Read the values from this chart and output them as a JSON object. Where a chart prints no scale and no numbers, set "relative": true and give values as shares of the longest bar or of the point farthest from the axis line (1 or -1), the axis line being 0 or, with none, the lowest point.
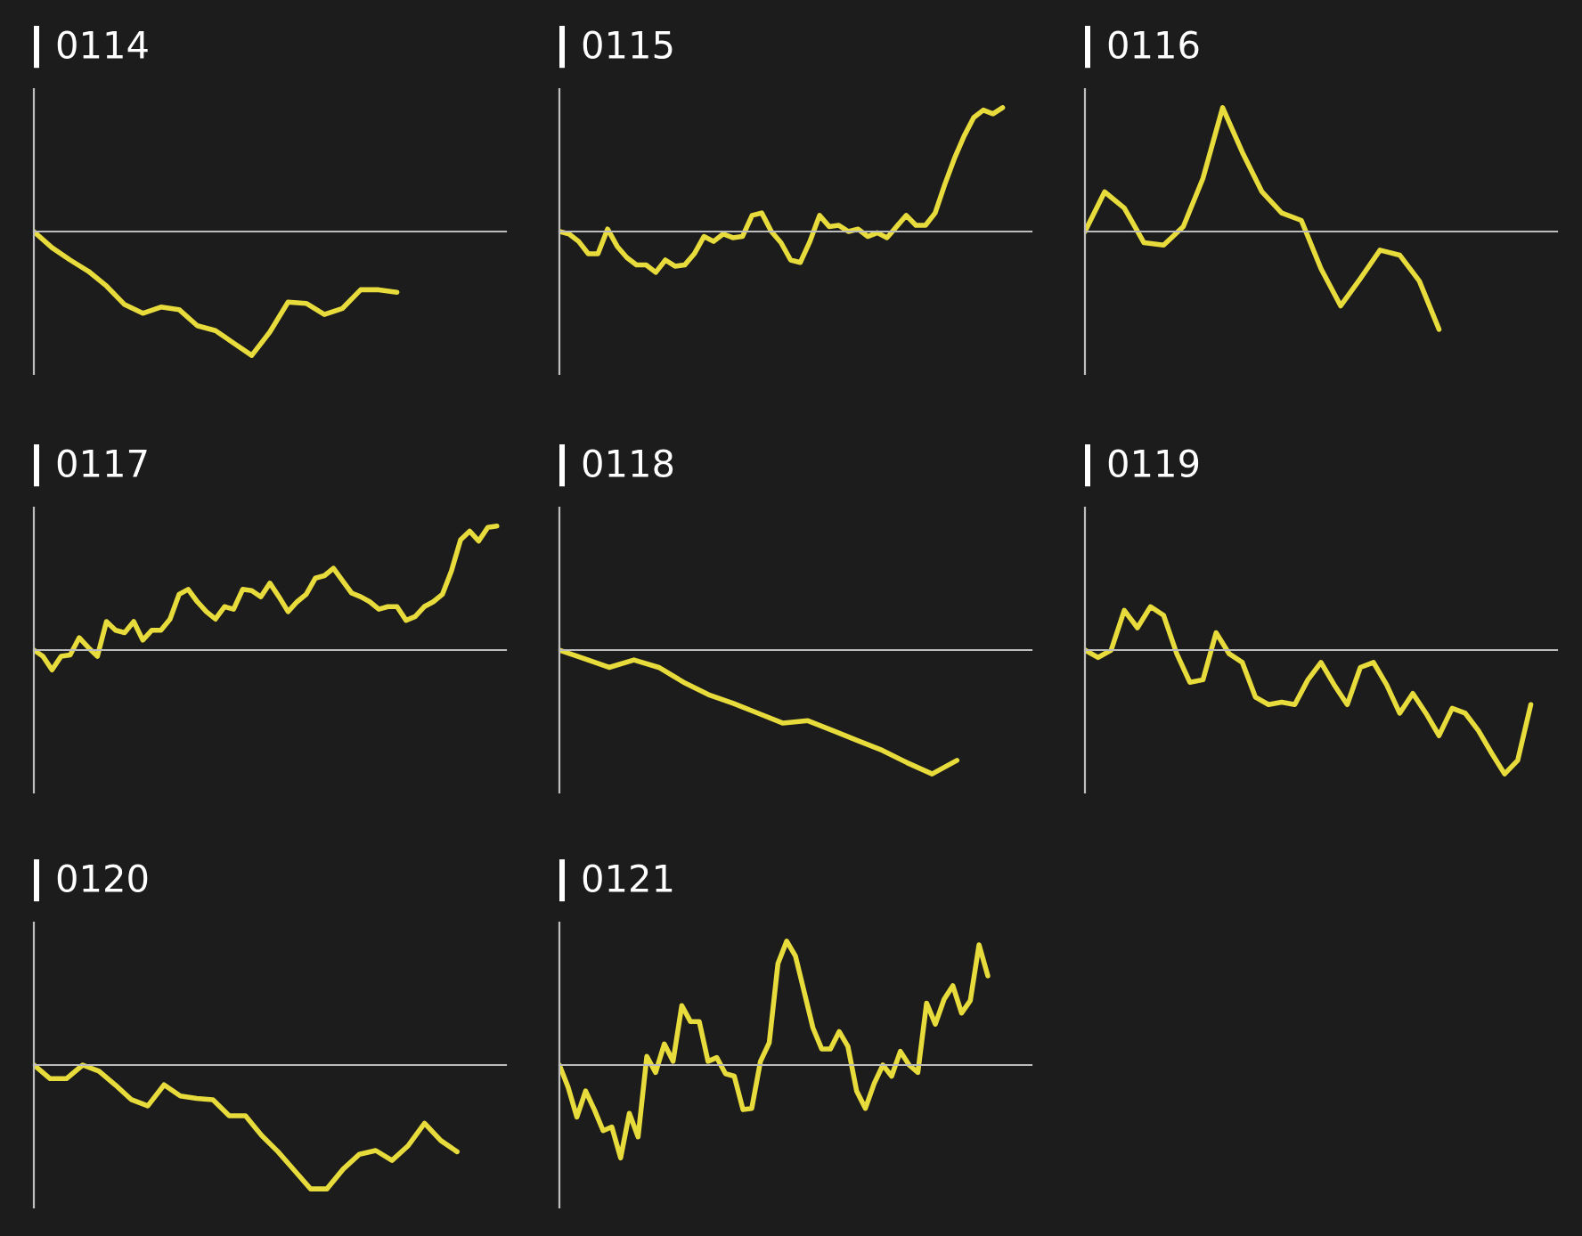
{
  "chart_data": [
    {
      "type": "line",
      "title": "0114",
      "relative": true,
      "categories": [
        null,
        null,
        null,
        null,
        null,
        null,
        null,
        null,
        null,
        null,
        null,
        null,
        null,
        null,
        null,
        null,
        null,
        null,
        null,
        null,
        null,
        null,
        null,
        null,
        null,
        null,
        null
      ],
      "series": [
        {
          "color": "#e8dc3c",
          "values": [
            0,
            -0.13,
            -0.23,
            -0.32,
            -0.44,
            -0.59,
            -0.66,
            -0.61,
            -0.63,
            -0.76,
            -0.8,
            -0.9,
            -1,
            -0.81,
            -0.57,
            -0.58,
            -0.67,
            -0.62,
            -0.47,
            -0.47,
            -0.49,
            null,
            null,
            null,
            null,
            null,
            null
          ]
        }
      ]
    },
    {
      "type": "line",
      "title": "0115",
      "relative": true,
      "categories": [
        null,
        null,
        null,
        null,
        null,
        null,
        null,
        null,
        null,
        null,
        null,
        null,
        null,
        null,
        null,
        null,
        null,
        null,
        null,
        null,
        null,
        null,
        null,
        null,
        null,
        null,
        null,
        null,
        null,
        null,
        null,
        null,
        null,
        null,
        null,
        null,
        null,
        null,
        null,
        null,
        null,
        null,
        null,
        null,
        null,
        null,
        null,
        null,
        null,
        null
      ],
      "series": [
        {
          "color": "#e8dc3c",
          "values": [
            0,
            -0.02,
            -0.08,
            -0.18,
            -0.18,
            0.02,
            -0.12,
            -0.21,
            -0.27,
            -0.27,
            -0.33,
            -0.23,
            -0.28,
            -0.27,
            -0.18,
            -0.04,
            -0.08,
            -0.02,
            -0.05,
            -0.04,
            0.13,
            0.15,
            0,
            -0.09,
            -0.23,
            -0.25,
            -0.08,
            0.13,
            0.04,
            0.05,
            0,
            0.02,
            -0.04,
            -0.01,
            -0.05,
            0.04,
            0.13,
            0.05,
            0.05,
            0.15,
            0.38,
            0.59,
            0.77,
            0.92,
            0.98,
            0.95,
            1,
            null,
            null,
            null
          ]
        }
      ]
    },
    {
      "type": "line",
      "title": "0116",
      "relative": true,
      "categories": [
        null,
        null,
        null,
        null,
        null,
        null,
        null,
        null,
        null,
        null,
        null,
        null,
        null,
        null,
        null,
        null,
        null,
        null,
        null,
        null,
        null,
        null,
        null,
        null,
        null
      ],
      "series": [
        {
          "color": "#e8dc3c",
          "values": [
            0,
            0.32,
            0.19,
            -0.09,
            -0.11,
            0.04,
            0.43,
            1,
            0.64,
            0.32,
            0.15,
            0.09,
            -0.3,
            -0.6,
            -0.38,
            -0.15,
            -0.19,
            -0.4,
            -0.79,
            null,
            null,
            null,
            null,
            null,
            null
          ]
        }
      ]
    },
    {
      "type": "line",
      "title": "0117",
      "relative": true,
      "categories": [
        null,
        null,
        null,
        null,
        null,
        null,
        null,
        null,
        null,
        null,
        null,
        null,
        null,
        null,
        null,
        null,
        null,
        null,
        null,
        null,
        null,
        null,
        null,
        null,
        null,
        null,
        null,
        null,
        null,
        null,
        null,
        null,
        null,
        null,
        null,
        null,
        null,
        null,
        null,
        null,
        null,
        null,
        null,
        null,
        null,
        null,
        null,
        null,
        null,
        null,
        null,
        null,
        null
      ],
      "series": [
        {
          "color": "#e8dc3c",
          "values": [
            0,
            -0.05,
            -0.16,
            -0.05,
            -0.04,
            0.1,
            0.02,
            -0.05,
            0.23,
            0.16,
            0.14,
            0.23,
            0.08,
            0.16,
            0.16,
            0.25,
            0.45,
            0.49,
            0.39,
            0.31,
            0.25,
            0.35,
            0.33,
            0.49,
            0.48,
            0.43,
            0.54,
            0.43,
            0.31,
            0.39,
            0.45,
            0.58,
            0.6,
            0.66,
            0.56,
            0.46,
            0.43,
            0.39,
            0.33,
            0.35,
            0.35,
            0.24,
            0.27,
            0.35,
            0.39,
            0.45,
            0.64,
            0.89,
            0.96,
            0.88,
            0.99,
            1,
            null
          ]
        }
      ]
    },
    {
      "type": "line",
      "title": "0118",
      "relative": true,
      "categories": [
        null,
        null,
        null,
        null,
        null,
        null,
        null,
        null,
        null,
        null,
        null,
        null,
        null,
        null,
        null,
        null,
        null,
        null,
        null,
        null
      ],
      "series": [
        {
          "color": "#e8dc3c",
          "values": [
            0,
            -0.07,
            -0.14,
            -0.08,
            -0.14,
            -0.26,
            -0.36,
            -0.43,
            -0.51,
            -0.59,
            -0.57,
            -0.65,
            -0.73,
            -0.81,
            -0.91,
            -1,
            -0.89,
            null,
            null,
            null
          ]
        }
      ]
    },
    {
      "type": "line",
      "title": "0119",
      "relative": true,
      "categories": [
        null,
        null,
        null,
        null,
        null,
        null,
        null,
        null,
        null,
        null,
        null,
        null,
        null,
        null,
        null,
        null,
        null,
        null,
        null,
        null,
        null,
        null,
        null,
        null,
        null,
        null,
        null,
        null,
        null,
        null,
        null,
        null,
        null,
        null,
        null,
        null,
        null
      ],
      "series": [
        {
          "color": "#e8dc3c",
          "values": [
            0,
            -0.06,
            0,
            0.32,
            0.18,
            0.35,
            0.28,
            -0.03,
            -0.26,
            -0.24,
            0.14,
            -0.03,
            -0.1,
            -0.38,
            -0.44,
            -0.42,
            -0.44,
            -0.24,
            -0.1,
            -0.28,
            -0.44,
            -0.14,
            -0.1,
            -0.28,
            -0.51,
            -0.35,
            -0.51,
            -0.69,
            -0.47,
            -0.51,
            -0.65,
            -0.83,
            -1,
            -0.89,
            -0.44,
            null,
            null
          ]
        }
      ]
    },
    {
      "type": "line",
      "title": "0120",
      "relative": true,
      "categories": [
        null,
        null,
        null,
        null,
        null,
        null,
        null,
        null,
        null,
        null,
        null,
        null,
        null,
        null,
        null,
        null,
        null,
        null,
        null,
        null,
        null,
        null,
        null,
        null,
        null,
        null,
        null,
        null,
        null,
        null
      ],
      "series": [
        {
          "color": "#e8dc3c",
          "values": [
            0,
            -0.11,
            -0.11,
            0,
            -0.05,
            -0.16,
            -0.28,
            -0.33,
            -0.16,
            -0.25,
            -0.27,
            -0.28,
            -0.41,
            -0.41,
            -0.57,
            -0.7,
            -0.85,
            -1,
            -1,
            -0.84,
            -0.72,
            -0.69,
            -0.77,
            -0.65,
            -0.47,
            -0.61,
            -0.7,
            null,
            null,
            null
          ]
        }
      ]
    },
    {
      "type": "line",
      "title": "0121",
      "relative": true,
      "categories": [
        null,
        null,
        null,
        null,
        null,
        null,
        null,
        null,
        null,
        null,
        null,
        null,
        null,
        null,
        null,
        null,
        null,
        null,
        null,
        null,
        null,
        null,
        null,
        null,
        null,
        null,
        null,
        null,
        null,
        null,
        null,
        null,
        null,
        null,
        null,
        null,
        null,
        null,
        null,
        null,
        null,
        null,
        null,
        null,
        null,
        null,
        null,
        null,
        null,
        null,
        null,
        null,
        null,
        null,
        null
      ],
      "series": [
        {
          "color": "#e8dc3c",
          "values": [
            0,
            -0.18,
            -0.42,
            -0.21,
            -0.36,
            -0.53,
            -0.5,
            -0.75,
            -0.39,
            -0.58,
            0.07,
            -0.06,
            0.17,
            0.03,
            0.48,
            0.35,
            0.35,
            0.03,
            0.06,
            -0.07,
            -0.09,
            -0.36,
            -0.35,
            0.03,
            0.18,
            0.82,
            1,
            0.88,
            0.59,
            0.3,
            0.13,
            0.13,
            0.27,
            0.15,
            -0.21,
            -0.35,
            -0.15,
            0,
            -0.09,
            0.11,
            0,
            -0.06,
            0.5,
            0.33,
            0.53,
            0.64,
            0.42,
            0.52,
            0.97,
            0.72,
            null,
            null,
            null,
            null,
            null
          ]
        }
      ]
    }
  ]
}
